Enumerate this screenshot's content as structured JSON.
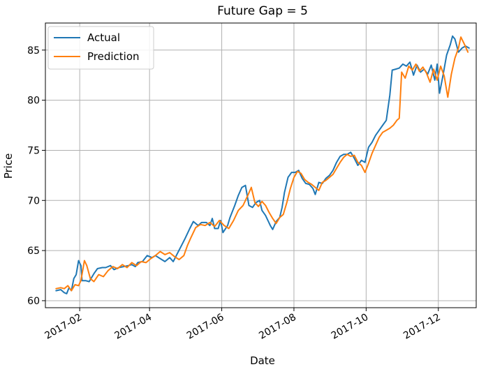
{
  "chart_data": {
    "type": "line",
    "title": "Future Gap = 5",
    "xlabel": "Date",
    "ylabel": "Price",
    "x_ticks": [
      "2017-02",
      "2017-04",
      "2017-06",
      "2017-08",
      "2017-10",
      "2017-12"
    ],
    "x_tick_dates": [
      "2017-02-01",
      "2017-04-01",
      "2017-06-01",
      "2017-08-01",
      "2017-10-01",
      "2017-12-01"
    ],
    "y_ticks": [
      60,
      65,
      70,
      75,
      80,
      85
    ],
    "xlim": [
      "2017-01-03",
      "2018-01-02"
    ],
    "ylim": [
      59.3,
      87.7
    ],
    "grid": true,
    "legend_position": "top-left",
    "series": [
      {
        "name": "Actual",
        "color": "#1f77b4",
        "points": [
          [
            "2017-01-12",
            61.0
          ],
          [
            "2017-01-16",
            61.1
          ],
          [
            "2017-01-19",
            60.8
          ],
          [
            "2017-01-21",
            60.7
          ],
          [
            "2017-01-23",
            61.3
          ],
          [
            "2017-01-25",
            61.0
          ],
          [
            "2017-01-27",
            62.2
          ],
          [
            "2017-01-29",
            62.6
          ],
          [
            "2017-01-31",
            64.0
          ],
          [
            "2017-02-02",
            63.5
          ],
          [
            "2017-02-03",
            62.0
          ],
          [
            "2017-02-06",
            62.0
          ],
          [
            "2017-02-09",
            61.9
          ],
          [
            "2017-02-13",
            62.7
          ],
          [
            "2017-02-16",
            63.2
          ],
          [
            "2017-02-20",
            63.3
          ],
          [
            "2017-02-23",
            63.3
          ],
          [
            "2017-02-27",
            63.5
          ],
          [
            "2017-03-02",
            63.1
          ],
          [
            "2017-03-06",
            63.3
          ],
          [
            "2017-03-10",
            63.4
          ],
          [
            "2017-03-14",
            63.5
          ],
          [
            "2017-03-17",
            63.6
          ],
          [
            "2017-03-20",
            63.4
          ],
          [
            "2017-03-22",
            63.8
          ],
          [
            "2017-03-26",
            63.9
          ],
          [
            "2017-03-30",
            64.5
          ],
          [
            "2017-04-03",
            64.3
          ],
          [
            "2017-04-06",
            64.5
          ],
          [
            "2017-04-10",
            64.2
          ],
          [
            "2017-04-14",
            63.9
          ],
          [
            "2017-04-18",
            64.3
          ],
          [
            "2017-04-21",
            63.9
          ],
          [
            "2017-04-24",
            64.6
          ],
          [
            "2017-04-28",
            65.5
          ],
          [
            "2017-05-01",
            66.2
          ],
          [
            "2017-05-05",
            67.2
          ],
          [
            "2017-05-08",
            67.9
          ],
          [
            "2017-05-12",
            67.5
          ],
          [
            "2017-05-15",
            67.8
          ],
          [
            "2017-05-19",
            67.8
          ],
          [
            "2017-05-22",
            67.5
          ],
          [
            "2017-05-24",
            68.2
          ],
          [
            "2017-05-26",
            67.2
          ],
          [
            "2017-05-29",
            67.2
          ],
          [
            "2017-05-31",
            68.0
          ],
          [
            "2017-06-02",
            66.8
          ],
          [
            "2017-06-06",
            67.5
          ],
          [
            "2017-06-08",
            68.3
          ],
          [
            "2017-06-12",
            69.5
          ],
          [
            "2017-06-15",
            70.5
          ],
          [
            "2017-06-18",
            71.3
          ],
          [
            "2017-06-21",
            71.5
          ],
          [
            "2017-06-24",
            69.5
          ],
          [
            "2017-06-27",
            69.3
          ],
          [
            "2017-06-30",
            69.8
          ],
          [
            "2017-07-03",
            70.0
          ],
          [
            "2017-07-05",
            69.0
          ],
          [
            "2017-07-08",
            68.5
          ],
          [
            "2017-07-10",
            68.0
          ],
          [
            "2017-07-12",
            67.5
          ],
          [
            "2017-07-14",
            67.1
          ],
          [
            "2017-07-17",
            67.9
          ],
          [
            "2017-07-20",
            68.3
          ],
          [
            "2017-07-22",
            69.3
          ],
          [
            "2017-07-24",
            70.8
          ],
          [
            "2017-07-27",
            72.3
          ],
          [
            "2017-07-30",
            72.8
          ],
          [
            "2017-08-02",
            72.8
          ],
          [
            "2017-08-05",
            73.0
          ],
          [
            "2017-08-08",
            72.2
          ],
          [
            "2017-08-11",
            71.7
          ],
          [
            "2017-08-14",
            71.6
          ],
          [
            "2017-08-17",
            71.2
          ],
          [
            "2017-08-19",
            70.6
          ],
          [
            "2017-08-22",
            71.8
          ],
          [
            "2017-08-25",
            71.7
          ],
          [
            "2017-08-28",
            72.2
          ],
          [
            "2017-08-31",
            72.5
          ],
          [
            "2017-09-03",
            73.0
          ],
          [
            "2017-09-06",
            73.8
          ],
          [
            "2017-09-09",
            74.4
          ],
          [
            "2017-09-12",
            74.6
          ],
          [
            "2017-09-15",
            74.6
          ],
          [
            "2017-09-18",
            74.8
          ],
          [
            "2017-09-21",
            74.2
          ],
          [
            "2017-09-24",
            73.5
          ],
          [
            "2017-09-27",
            74.0
          ],
          [
            "2017-09-30",
            73.8
          ],
          [
            "2017-10-03",
            75.3
          ],
          [
            "2017-10-06",
            75.8
          ],
          [
            "2017-10-09",
            76.5
          ],
          [
            "2017-10-12",
            77.0
          ],
          [
            "2017-10-15",
            77.5
          ],
          [
            "2017-10-18",
            78.0
          ],
          [
            "2017-10-21",
            80.5
          ],
          [
            "2017-10-23",
            83.0
          ],
          [
            "2017-10-26",
            83.1
          ],
          [
            "2017-10-29",
            83.2
          ],
          [
            "2017-11-01",
            83.6
          ],
          [
            "2017-11-04",
            83.4
          ],
          [
            "2017-11-07",
            83.8
          ],
          [
            "2017-11-10",
            82.5
          ],
          [
            "2017-11-13",
            83.5
          ],
          [
            "2017-11-16",
            82.8
          ],
          [
            "2017-11-19",
            83.1
          ],
          [
            "2017-11-22",
            82.6
          ],
          [
            "2017-11-25",
            83.5
          ],
          [
            "2017-11-28",
            82.0
          ],
          [
            "2017-11-30",
            83.6
          ],
          [
            "2017-12-02",
            80.7
          ],
          [
            "2017-12-05",
            82.5
          ],
          [
            "2017-12-08",
            84.5
          ],
          [
            "2017-12-11",
            85.5
          ],
          [
            "2017-12-13",
            86.4
          ],
          [
            "2017-12-15",
            86.1
          ],
          [
            "2017-12-18",
            84.8
          ],
          [
            "2017-12-21",
            85.2
          ],
          [
            "2017-12-24",
            85.4
          ],
          [
            "2017-12-27",
            85.2
          ]
        ]
      },
      {
        "name": "Prediction",
        "color": "#ff7f0e",
        "points": [
          [
            "2017-01-12",
            61.2
          ],
          [
            "2017-01-16",
            61.3
          ],
          [
            "2017-01-19",
            61.2
          ],
          [
            "2017-01-22",
            61.5
          ],
          [
            "2017-01-25",
            61.0
          ],
          [
            "2017-01-28",
            61.6
          ],
          [
            "2017-01-31",
            61.5
          ],
          [
            "2017-02-02",
            62.0
          ],
          [
            "2017-02-05",
            64.0
          ],
          [
            "2017-02-07",
            63.5
          ],
          [
            "2017-02-10",
            62.2
          ],
          [
            "2017-02-13",
            61.9
          ],
          [
            "2017-02-17",
            62.6
          ],
          [
            "2017-02-21",
            62.4
          ],
          [
            "2017-02-25",
            63.0
          ],
          [
            "2017-03-01",
            63.4
          ],
          [
            "2017-03-05",
            63.2
          ],
          [
            "2017-03-09",
            63.6
          ],
          [
            "2017-03-13",
            63.3
          ],
          [
            "2017-03-17",
            63.8
          ],
          [
            "2017-03-21",
            63.5
          ],
          [
            "2017-03-25",
            63.9
          ],
          [
            "2017-03-29",
            63.8
          ],
          [
            "2017-04-02",
            64.2
          ],
          [
            "2017-04-06",
            64.5
          ],
          [
            "2017-04-10",
            64.9
          ],
          [
            "2017-04-14",
            64.6
          ],
          [
            "2017-04-18",
            64.8
          ],
          [
            "2017-04-22",
            64.4
          ],
          [
            "2017-04-26",
            64.1
          ],
          [
            "2017-04-30",
            64.5
          ],
          [
            "2017-05-03",
            65.5
          ],
          [
            "2017-05-06",
            66.3
          ],
          [
            "2017-05-10",
            67.3
          ],
          [
            "2017-05-14",
            67.6
          ],
          [
            "2017-05-18",
            67.5
          ],
          [
            "2017-05-22",
            67.8
          ],
          [
            "2017-05-26",
            67.4
          ],
          [
            "2017-05-30",
            68.0
          ],
          [
            "2017-06-03",
            67.5
          ],
          [
            "2017-06-07",
            67.2
          ],
          [
            "2017-06-11",
            68.0
          ],
          [
            "2017-06-15",
            69.0
          ],
          [
            "2017-06-19",
            69.5
          ],
          [
            "2017-06-23",
            70.5
          ],
          [
            "2017-06-26",
            71.3
          ],
          [
            "2017-06-29",
            69.8
          ],
          [
            "2017-07-02",
            69.4
          ],
          [
            "2017-07-05",
            69.9
          ],
          [
            "2017-07-08",
            69.5
          ],
          [
            "2017-07-11",
            68.8
          ],
          [
            "2017-07-14",
            68.2
          ],
          [
            "2017-07-17",
            67.7
          ],
          [
            "2017-07-20",
            68.3
          ],
          [
            "2017-07-23",
            68.6
          ],
          [
            "2017-07-26",
            69.8
          ],
          [
            "2017-07-29",
            71.2
          ],
          [
            "2017-08-01",
            72.3
          ],
          [
            "2017-08-04",
            72.9
          ],
          [
            "2017-08-07",
            72.7
          ],
          [
            "2017-08-10",
            72.1
          ],
          [
            "2017-08-13",
            71.8
          ],
          [
            "2017-08-16",
            71.6
          ],
          [
            "2017-08-19",
            71.3
          ],
          [
            "2017-08-22",
            71.0
          ],
          [
            "2017-08-25",
            71.8
          ],
          [
            "2017-08-28",
            72.0
          ],
          [
            "2017-08-31",
            72.3
          ],
          [
            "2017-09-03",
            72.6
          ],
          [
            "2017-09-06",
            73.2
          ],
          [
            "2017-09-09",
            73.8
          ],
          [
            "2017-09-12",
            74.3
          ],
          [
            "2017-09-15",
            74.6
          ],
          [
            "2017-09-18",
            74.4
          ],
          [
            "2017-09-21",
            74.5
          ],
          [
            "2017-09-24",
            73.8
          ],
          [
            "2017-09-27",
            73.5
          ],
          [
            "2017-09-30",
            72.8
          ],
          [
            "2017-10-03",
            73.7
          ],
          [
            "2017-10-06",
            74.7
          ],
          [
            "2017-10-09",
            75.5
          ],
          [
            "2017-10-12",
            76.3
          ],
          [
            "2017-10-15",
            76.8
          ],
          [
            "2017-10-18",
            77.0
          ],
          [
            "2017-10-21",
            77.2
          ],
          [
            "2017-10-24",
            77.5
          ],
          [
            "2017-10-27",
            78.0
          ],
          [
            "2017-10-29",
            78.2
          ],
          [
            "2017-10-31",
            82.8
          ],
          [
            "2017-11-03",
            82.2
          ],
          [
            "2017-11-06",
            83.4
          ],
          [
            "2017-11-09",
            83.0
          ],
          [
            "2017-11-12",
            83.6
          ],
          [
            "2017-11-15",
            82.9
          ],
          [
            "2017-11-18",
            83.3
          ],
          [
            "2017-11-21",
            82.7
          ],
          [
            "2017-11-24",
            81.8
          ],
          [
            "2017-11-27",
            83.1
          ],
          [
            "2017-11-30",
            82.0
          ],
          [
            "2017-12-03",
            83.4
          ],
          [
            "2017-12-06",
            82.4
          ],
          [
            "2017-12-09",
            80.3
          ],
          [
            "2017-12-12",
            82.6
          ],
          [
            "2017-12-15",
            84.2
          ],
          [
            "2017-12-18",
            85.2
          ],
          [
            "2017-12-20",
            86.3
          ],
          [
            "2017-12-23",
            85.6
          ],
          [
            "2017-12-26",
            84.8
          ]
        ]
      }
    ]
  }
}
